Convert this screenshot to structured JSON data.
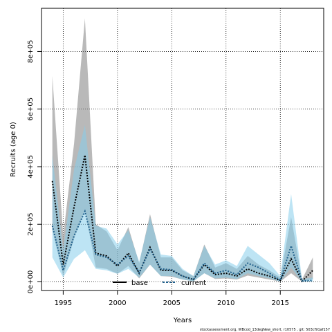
{
  "chart_data": {
    "type": "area",
    "title": "",
    "xlabel": "Years",
    "ylabel": "Recruits (age 0)",
    "xlim": [
      1993,
      2019
    ],
    "ylim": [
      -30000,
      950000
    ],
    "x_ticks": [
      1995,
      2000,
      2005,
      2010,
      2015
    ],
    "x_tick_labels": [
      "1995",
      "2000",
      "2005",
      "2010",
      "2015"
    ],
    "y_ticks": [
      0,
      200000,
      400000,
      600000,
      800000
    ],
    "y_tick_labels": [
      "0e+00",
      "2e+05",
      "4e+05",
      "6e+05",
      "8e+05"
    ],
    "grid": true,
    "legend_position": "bottom",
    "footnote": "stockassessment.org, WBcod_13degNew_short, r10575 , git: 503cf91af157",
    "colors": {
      "base_band": "#808080",
      "current_band": "#87ceeb",
      "base_line": "#000000",
      "current_line": "#1f5f8b"
    },
    "x": [
      1994,
      1995,
      1996,
      1997,
      1998,
      1999,
      2000,
      2001,
      2002,
      2003,
      2004,
      2005,
      2006,
      2007,
      2008,
      2009,
      2010,
      2011,
      2012,
      2013,
      2014,
      2015,
      2016,
      2017,
      2018
    ],
    "series": [
      {
        "name": "base",
        "values": [
          350000,
          60000,
          260000,
          440000,
          100000,
          90000,
          55000,
          100000,
          30000,
          120000,
          40000,
          40000,
          20000,
          8000,
          60000,
          25000,
          30000,
          20000,
          45000,
          30000,
          20000,
          5000,
          80000,
          2000,
          40000
        ],
        "lower": [
          180000,
          20000,
          150000,
          250000,
          50000,
          45000,
          28000,
          55000,
          12000,
          60000,
          20000,
          18000,
          8000,
          2000,
          30000,
          10000,
          12000,
          8000,
          22000,
          15000,
          8000,
          1000,
          30000,
          500,
          10000
        ],
        "upper": [
          715000,
          160000,
          480000,
          915000,
          200000,
          175000,
          110000,
          190000,
          65000,
          235000,
          85000,
          85000,
          40000,
          20000,
          130000,
          50000,
          65000,
          45000,
          90000,
          60000,
          40000,
          15000,
          225000,
          8000,
          85000
        ]
      },
      {
        "name": "current",
        "values": [
          195000,
          40000,
          160000,
          245000,
          95000,
          85000,
          60000,
          90000,
          32000,
          115000,
          45000,
          42000,
          20000,
          8000,
          65000,
          30000,
          40000,
          25000,
          65000,
          50000,
          30000,
          5000,
          125000,
          3000,
          5000
        ],
        "lower": [
          85000,
          15000,
          80000,
          110000,
          45000,
          40000,
          28000,
          45000,
          15000,
          60000,
          20000,
          20000,
          8000,
          2000,
          30000,
          12000,
          15000,
          10000,
          30000,
          20000,
          12000,
          1000,
          50000,
          500,
          1000
        ],
        "upper": [
          440000,
          110000,
          390000,
          545000,
          195000,
          185000,
          130000,
          180000,
          70000,
          225000,
          95000,
          90000,
          45000,
          20000,
          125000,
          60000,
          75000,
          55000,
          125000,
          95000,
          65000,
          20000,
          305000,
          10000,
          15000
        ]
      }
    ]
  }
}
